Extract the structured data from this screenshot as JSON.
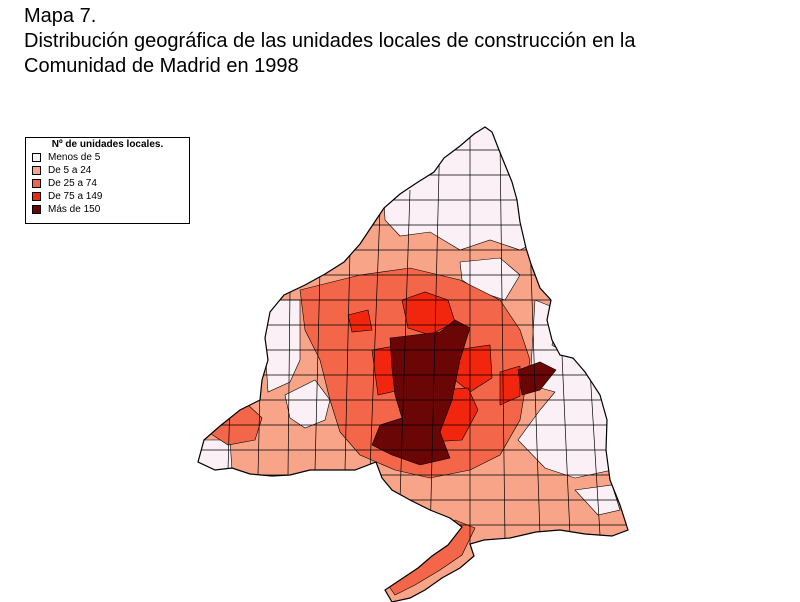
{
  "title": {
    "line1": "Mapa 7.",
    "line2": "Distribución geográfica de las unidades locales de construcción en la",
    "line3": "Comunidad de Madrid en 1998"
  },
  "legend": {
    "title": "Nº de unidades locales.",
    "items": [
      {
        "label": "Menos de 5",
        "color": "#fbf0f5"
      },
      {
        "label": "De 5 a 24",
        "color": "#f7a488"
      },
      {
        "label": "De 25 a 74",
        "color": "#f3664a"
      },
      {
        "label": "De 75 a 149",
        "color": "#f2250f"
      },
      {
        "label": "Más de 150",
        "color": "#6b0606"
      }
    ]
  },
  "colors": {
    "border": "#000000",
    "background": "#ffffff"
  }
}
